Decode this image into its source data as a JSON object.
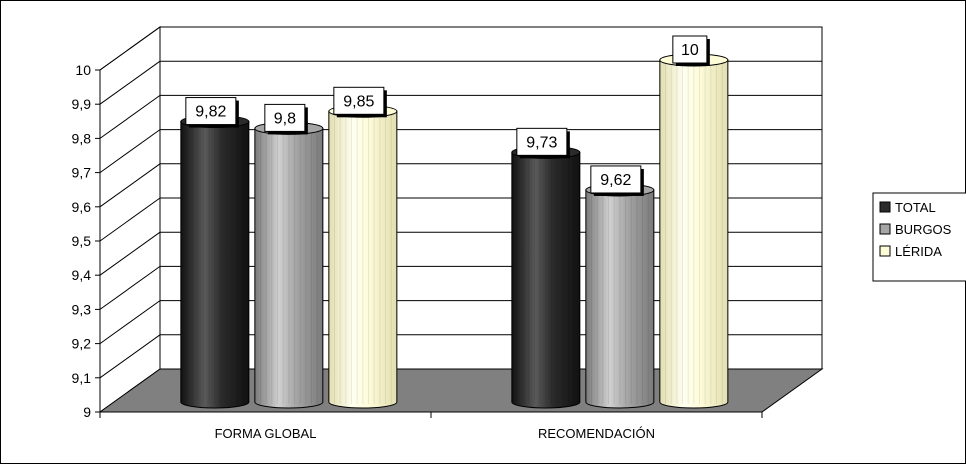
{
  "chart_data": {
    "type": "bar",
    "style": "3d-cylinder",
    "categories": [
      "FORMA GLOBAL",
      "RECOMENDACIÓN"
    ],
    "series": [
      {
        "name": "TOTAL",
        "values": [
          9.82,
          9.73
        ],
        "color": "#2b2b2b"
      },
      {
        "name": "BURGOS",
        "values": [
          9.8,
          9.62
        ],
        "color": "#a6a6a6"
      },
      {
        "name": "LÉRIDA",
        "values": [
          9.85,
          10
        ],
        "color": "#fdfbd8"
      }
    ],
    "data_labels": [
      [
        "9,82",
        "9,73"
      ],
      [
        "9,8",
        "9,62"
      ],
      [
        "9,85",
        "10"
      ]
    ],
    "y_ticks": [
      9,
      9.1,
      9.2,
      9.3,
      9.4,
      9.5,
      9.6,
      9.7,
      9.8,
      9.9,
      10
    ],
    "y_tick_labels": [
      "9",
      "9,1",
      "9,2",
      "9,3",
      "9,4",
      "9,5",
      "9,6",
      "9,7",
      "9,8",
      "9,9",
      "10"
    ],
    "ylim": [
      9,
      10
    ],
    "grid": true,
    "legend": "right",
    "floor_color": "#808080",
    "title": "",
    "xlabel": "",
    "ylabel": ""
  }
}
